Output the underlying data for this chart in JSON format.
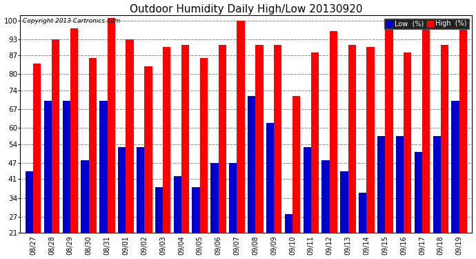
{
  "title": "Outdoor Humidity Daily High/Low 20130920",
  "copyright": "Copyright 2013 Cartronics.com",
  "categories": [
    "08/27",
    "08/28",
    "08/29",
    "08/30",
    "08/31",
    "09/01",
    "09/02",
    "09/03",
    "09/04",
    "09/05",
    "09/06",
    "09/07",
    "09/08",
    "09/09",
    "09/10",
    "09/11",
    "09/12",
    "09/13",
    "09/14",
    "09/15",
    "09/16",
    "09/17",
    "09/18",
    "09/19"
  ],
  "high": [
    84,
    93,
    97,
    86,
    101,
    93,
    83,
    90,
    91,
    86,
    91,
    100,
    91,
    91,
    72,
    88,
    96,
    91,
    90,
    100,
    88,
    100,
    91,
    100
  ],
  "low": [
    44,
    70,
    70,
    48,
    70,
    53,
    53,
    38,
    42,
    38,
    47,
    47,
    72,
    62,
    28,
    53,
    48,
    44,
    36,
    57,
    57,
    51,
    57,
    70
  ],
  "bg_color": "#ffffff",
  "high_color": "#ff0000",
  "low_color": "#0000cc",
  "grid_color": "#888888",
  "yticks": [
    21,
    27,
    34,
    41,
    47,
    54,
    60,
    67,
    74,
    80,
    87,
    93,
    100
  ],
  "ymin": 21,
  "ymax": 102,
  "bar_width": 0.42,
  "title_fontsize": 11,
  "label_fontsize": 7,
  "tick_fontsize": 7.5,
  "legend_bg": "#222222"
}
